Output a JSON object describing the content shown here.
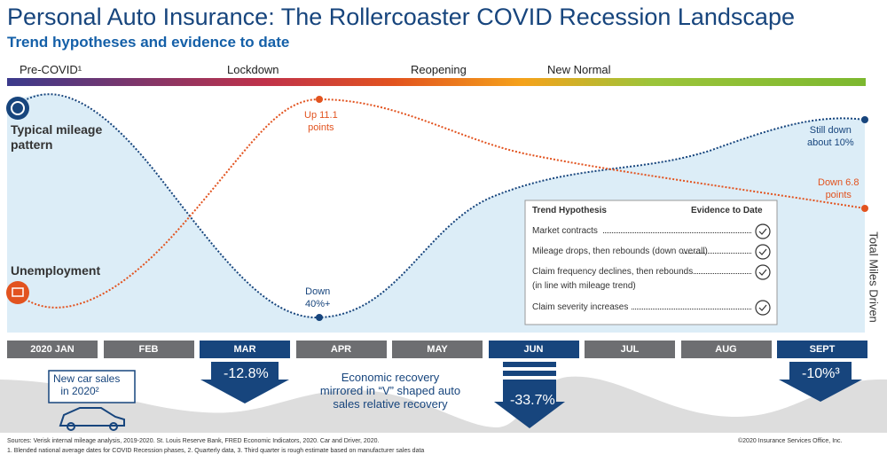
{
  "header": {
    "title": "Personal Auto Insurance: The Rollercoaster COVID Recession Landscape",
    "subtitle": "Trend hypotheses and evidence to date"
  },
  "phases": [
    "Pre-COVID¹",
    "Lockdown",
    "Reopening",
    "New Normal"
  ],
  "annotations": {
    "mileage": [
      "Typical mileage",
      "pattern"
    ],
    "unemployment": "Unemployment",
    "up": [
      "Up 11.1",
      "points"
    ],
    "down40": [
      "Down",
      "40%+"
    ],
    "stilldown": [
      "Still down",
      "about 10%"
    ],
    "down68": [
      "Down 6.8",
      "points"
    ],
    "axis": "Total Miles Driven"
  },
  "table": {
    "header": [
      "Trend Hypothesis",
      "Evidence to Date"
    ],
    "rows": [
      "Market contracts",
      "Mileage drops, then rebounds (down overall)",
      "Claim frequency declines, then rebounds",
      "(in line with mileage trend)",
      "Claim severity increases"
    ]
  },
  "months": [
    "2020 JAN",
    "FEB",
    "MAR",
    "APR",
    "MAY",
    "JUN",
    "JUL",
    "AUG",
    "SEPT"
  ],
  "sales": {
    "label": [
      "New car sales",
      "in 2020²"
    ],
    "mar": "-12.8%",
    "jun": "-33.7%",
    "sept": "-10%³",
    "recovery": [
      "Economic recovery",
      "mirrored in “V” shaped auto",
      "sales relative recovery"
    ]
  },
  "footer": {
    "sources": "Sources:  Verisk internal mileage analysis, 2019-2020.  St. Louis Reserve Bank, FRED Economic Indicators, 2020.  Car and Driver, 2020.",
    "notes": "1. Blended national average dates for COVID Recession phases, 2. Quarterly data, 3. Third quarter is rough estimate based on manufacturer sales data",
    "copyright": "©2020 Insurance Services Office, Inc."
  }
}
